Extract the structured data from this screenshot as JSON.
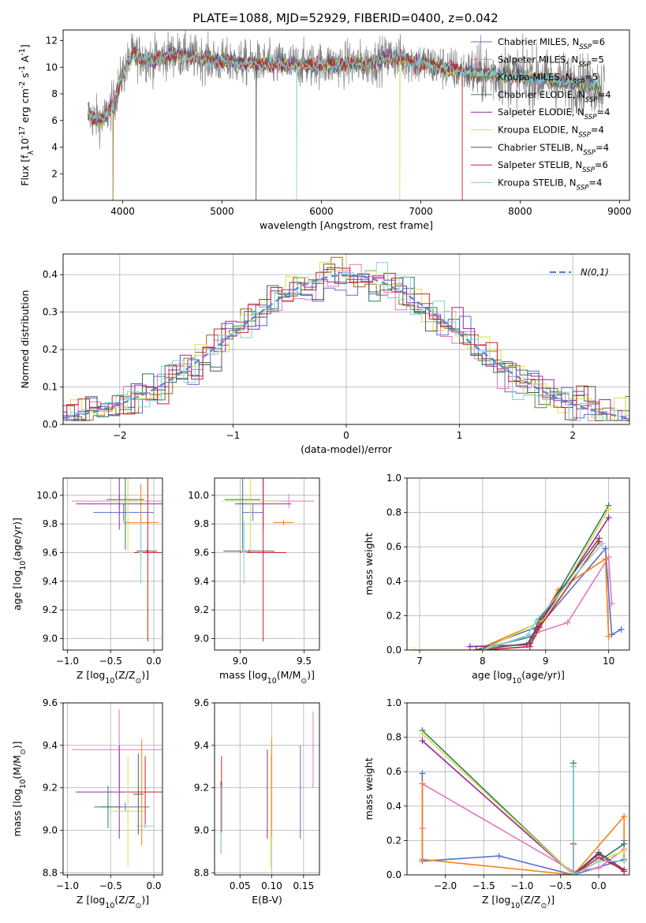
{
  "page": {
    "title": "PLATE=1088, MJD=52929, FIBERID=0400, z=0.042"
  },
  "chart_data": [
    {
      "id": "spectrum",
      "type": "line",
      "xlabel": "wavelength [Angstrom, rest frame]",
      "ylabel": "Flux [f$_\\lambda$10$^{-17}$ erg cm$^{-2}$ s$^{-1}$ A$^{-1}$]",
      "xlim": [
        3400,
        9100
      ],
      "ylim": [
        0,
        12.8
      ],
      "xticks": [
        4000,
        5000,
        6000,
        7000,
        8000,
        9000
      ],
      "yticks": [
        0,
        2,
        4,
        6,
        8,
        10,
        12
      ],
      "grid": false,
      "legend_position": "top-right",
      "x_range": [
        3650,
        8800
      ],
      "series": [
        {
          "name": "Chabrier MILES, N$_{SSP}$=6",
          "label": "Chabrier MILES, N",
          "sub": "SSP",
          "suffix": "=6",
          "color": "#5a6fcf",
          "drop_at": null
        },
        {
          "name": "Salpeter MILES, N$_{SSP}$=5",
          "label": "Salpeter MILES, N",
          "sub": "SSP",
          "suffix": "=5",
          "color": "#e377c2",
          "drop_at": null
        },
        {
          "name": "Kroupa MILES, N$_{SSP}$=5",
          "label": "Kroupa MILES, N",
          "sub": "SSP",
          "suffix": "=5",
          "color": "#8c6d1f",
          "drop_at": 3900
        },
        {
          "name": "Chabrier ELODIE, N$_{SSP}$=4",
          "label": "Chabrier ELODIE, N",
          "sub": "SSP",
          "suffix": "=4",
          "color": "#2f7a5f",
          "drop_at": null
        },
        {
          "name": "Salpeter ELODIE, N$_{SSP}$=4",
          "label": "Salpeter ELODIE, N",
          "sub": "SSP",
          "suffix": "=4",
          "color": "#9526a5",
          "drop_at": null
        },
        {
          "name": "Kroupa ELODIE, N$_{SSP}$=4",
          "label": "Kroupa ELODIE, N",
          "sub": "SSP",
          "suffix": "=4",
          "color": "#d6e14a",
          "drop_at": 6790
        },
        {
          "name": "Chabrier STELIB, N$_{SSP}$=4",
          "label": "Chabrier STELIB, N",
          "sub": "SSP",
          "suffix": "=4",
          "color": "#555555",
          "drop_at": 5340
        },
        {
          "name": "Salpeter STELIB, N$_{SSP}$=6",
          "label": "Salpeter STELIB, N",
          "sub": "SSP",
          "suffix": "=6",
          "color": "#cc2222",
          "drop_at": 7420
        },
        {
          "name": "Kroupa STELIB, N$_{SSP}$=4",
          "label": "Kroupa STELIB, N",
          "sub": "SSP",
          "suffix": "=4",
          "color": "#7fd3d6",
          "drop_at": 5750
        }
      ],
      "continuum_knots": {
        "wavelength": [
          3650,
          3700,
          3800,
          3900,
          4000,
          4100,
          4300,
          4500,
          5000,
          5500,
          6000,
          6500,
          6700,
          7000,
          7500,
          8000,
          8500,
          8800
        ],
        "flux": [
          6.5,
          6.2,
          6.0,
          7.2,
          9.5,
          11.0,
          10.5,
          11.0,
          10.4,
          10.2,
          10.2,
          10.3,
          10.8,
          10.3,
          9.6,
          9.3,
          8.9,
          8.6
        ]
      },
      "data_series": {
        "name": "observed",
        "color": "#808080",
        "x_range": [
          3650,
          8850
        ]
      }
    },
    {
      "id": "residuals",
      "type": "histogram",
      "xlabel": "(data-model)/error",
      "ylabel": "Normed distribution",
      "xlim": [
        -2.5,
        2.5
      ],
      "ylim": [
        0,
        0.455
      ],
      "xticks": [
        -2,
        -1,
        0,
        1,
        2
      ],
      "yticks": [
        0.0,
        0.1,
        0.2,
        0.3,
        0.4
      ],
      "grid": true,
      "legend_position": "top-right",
      "legend": "$\\mathcal{N}(0,1)$",
      "reference_curve": {
        "type": "gaussian",
        "mean": 0,
        "sigma": 1,
        "color": "#5b84d8",
        "style": "dashed"
      },
      "bin_width": 0.1,
      "colors": [
        "#5a6fcf",
        "#e377c2",
        "#8c6d1f",
        "#2f7a5f",
        "#9526a5",
        "#d6e14a",
        "#555555",
        "#cc2222",
        "#7fd3d6"
      ]
    },
    {
      "id": "z_vs_age",
      "type": "errorbar",
      "xlabel": "Z [log$_{10}$(Z/Z$_\\odot$)]",
      "ylabel": "age  [log$_{10}$(age/yr)]",
      "xlim": [
        -1.05,
        0.1
      ],
      "ylim": [
        8.92,
        10.12
      ],
      "xticks": [
        -1.0,
        -0.5,
        0.0
      ],
      "yticks": [
        9.0,
        9.2,
        9.4,
        9.6,
        9.8,
        10.0
      ],
      "grid": true,
      "points": [
        {
          "color": "#5a6fcf",
          "x": -0.35,
          "xerr": 0.35,
          "y": 9.88,
          "yerr": 0.06
        },
        {
          "color": "#e377c2",
          "x": -0.4,
          "xerr": 0.55,
          "y": 9.96,
          "yerr": 0.05
        },
        {
          "color": "#ff7f0e",
          "x": -0.15,
          "xerr": 0.2,
          "y": 9.81,
          "yerr": 0.27
        },
        {
          "color": "#2f7a5f",
          "x": -0.33,
          "xerr": 0.22,
          "y": 9.97,
          "yerr": 0.35
        },
        {
          "color": "#9526a5",
          "x": -0.4,
          "xerr": 0.5,
          "y": 9.94,
          "yerr": 0.18
        },
        {
          "color": "#d6e14a",
          "x": -0.3,
          "xerr": 0.2,
          "y": 9.96,
          "yerr": 0.35
        },
        {
          "color": "#555555",
          "x": -0.08,
          "xerr": 0.12,
          "y": 9.61,
          "yerr": 0.01
        },
        {
          "color": "#cc2222",
          "x": -0.07,
          "xerr": 0.16,
          "y": 9.6,
          "yerr": 0.62
        },
        {
          "color": "#7fd3d6",
          "x": -0.15,
          "xerr": 0.02,
          "y": 9.6,
          "yerr": 0.22
        }
      ]
    },
    {
      "id": "mass_vs_age",
      "type": "errorbar",
      "xlabel": "mass [log$_{10}$(M/M$_\\odot$)]",
      "ylabel": "",
      "xlim": [
        8.8,
        9.62
      ],
      "ylim": [
        8.92,
        10.12
      ],
      "xticks": [
        9.0,
        9.5
      ],
      "yticks": [
        9.0,
        9.2,
        9.4,
        9.6,
        9.8,
        10.0
      ],
      "grid": true,
      "points": [
        {
          "color": "#5a6fcf",
          "x": 9.1,
          "xerr": 0.08,
          "y": 9.88,
          "yerr": 0.06
        },
        {
          "color": "#e377c2",
          "x": 9.38,
          "xerr": 0.2,
          "y": 9.96,
          "yerr": 0.05
        },
        {
          "color": "#ff7f0e",
          "x": 9.34,
          "xerr": 0.08,
          "y": 9.81,
          "yerr": 0.02
        },
        {
          "color": "#2f7a5f",
          "x": 9.02,
          "xerr": 0.14,
          "y": 9.97,
          "yerr": 0.35
        },
        {
          "color": "#9526a5",
          "x": 9.18,
          "xerr": 0.22,
          "y": 9.94,
          "yerr": 0.18
        },
        {
          "color": "#d6e14a",
          "x": 9.08,
          "xerr": 0.22,
          "y": 9.96,
          "yerr": 0.35
        },
        {
          "color": "#555555",
          "x": 9.07,
          "xerr": 0.2,
          "y": 9.61,
          "yerr": 0.01
        },
        {
          "color": "#cc2222",
          "x": 9.18,
          "xerr": 0.18,
          "y": 9.6,
          "yerr": 0.62
        },
        {
          "color": "#7fd3d6",
          "x": 9.03,
          "xerr": 0.02,
          "y": 9.6,
          "yerr": 0.22
        }
      ]
    },
    {
      "id": "age_vs_massweight",
      "type": "line",
      "xlabel": "age  [log$_{10}$(age/yr)]",
      "ylabel": "mass weight",
      "xlim": [
        6.8,
        10.33
      ],
      "ylim": [
        0,
        1.0
      ],
      "xticks": [
        7,
        8,
        9,
        10
      ],
      "yticks": [
        0.0,
        0.2,
        0.4,
        0.6,
        0.8,
        1.0
      ],
      "grid": true,
      "series": [
        {
          "color": "#5a6fcf",
          "x": [
            7.9,
            8.9,
            9.95,
            10.05,
            10.2
          ],
          "y": [
            0.0,
            0.14,
            0.59,
            0.09,
            0.12
          ]
        },
        {
          "color": "#e377c2",
          "x": [
            8.0,
            8.85,
            9.35,
            10.0,
            10.05
          ],
          "y": [
            0.0,
            0.1,
            0.16,
            0.54,
            0.27
          ]
        },
        {
          "color": "#ff7f0e",
          "x": [
            7.9,
            8.9,
            9.2,
            9.95,
            10.0
          ],
          "y": [
            0.0,
            0.16,
            0.35,
            0.53,
            0.08
          ]
        },
        {
          "color": "#2f7a5f",
          "x": [
            7.9,
            8.8,
            8.95,
            10.0
          ],
          "y": [
            0.0,
            0.08,
            0.18,
            0.84
          ]
        },
        {
          "color": "#9526a5",
          "x": [
            7.8,
            8.7,
            8.85,
            10.0
          ],
          "y": [
            0.02,
            0.03,
            0.12,
            0.77
          ]
        },
        {
          "color": "#d6e14a",
          "x": [
            6.9,
            8.0,
            9.0,
            10.0
          ],
          "y": [
            0.0,
            0.0,
            0.18,
            0.82
          ]
        },
        {
          "color": "#555555",
          "x": [
            7.9,
            8.75,
            8.9,
            9.85
          ],
          "y": [
            0.0,
            0.04,
            0.18,
            0.65
          ]
        },
        {
          "color": "#cc2222",
          "x": [
            8.0,
            8.75,
            8.9,
            9.85
          ],
          "y": [
            0.0,
            0.02,
            0.13,
            0.63
          ]
        },
        {
          "color": "#7fd3d6",
          "x": [
            8.0,
            8.7,
            8.85,
            9.9
          ],
          "y": [
            0.0,
            0.08,
            0.17,
            0.62
          ]
        }
      ]
    },
    {
      "id": "z_vs_mass",
      "type": "errorbar",
      "xlabel": "Z [log$_{10}$(Z/Z$_\\odot$)]",
      "ylabel": "mass [log$_{10}$(M/M$_\\odot$)]",
      "xlim": [
        -1.05,
        0.1
      ],
      "ylim": [
        8.79,
        9.6
      ],
      "xticks": [
        -1.0,
        -0.5,
        0.0
      ],
      "yticks": [
        8.8,
        9.0,
        9.2,
        9.4,
        9.6
      ],
      "grid": true,
      "points": [
        {
          "color": "#5a6fcf",
          "x": -0.33,
          "xerr": 0.28,
          "y": 9.11,
          "yerr": 0.02
        },
        {
          "color": "#e377c2",
          "x": -0.4,
          "xerr": 0.55,
          "y": 9.38,
          "yerr": 0.19
        },
        {
          "color": "#ff7f0e",
          "x": -0.14,
          "xerr": 0.12,
          "y": 9.18,
          "yerr": 0.25
        },
        {
          "color": "#2f7a5f",
          "x": -0.53,
          "xerr": 0.16,
          "y": 9.11,
          "yerr": 0.1
        },
        {
          "color": "#9526a5",
          "x": -0.4,
          "xerr": 0.5,
          "y": 9.18,
          "yerr": 0.22
        },
        {
          "color": "#d6e14a",
          "x": -0.3,
          "xerr": 0.2,
          "y": 9.09,
          "yerr": 0.26
        },
        {
          "color": "#555555",
          "x": -0.18,
          "xerr": 0.06,
          "y": 9.17,
          "yerr": 0.19
        },
        {
          "color": "#cc2222",
          "x": -0.1,
          "xerr": 0.18,
          "y": 9.18,
          "yerr": 0.17
        },
        {
          "color": "#7fd3d6",
          "x": -0.1,
          "xerr": 0.1,
          "y": 9.02,
          "yerr": 0.01
        }
      ]
    },
    {
      "id": "ebv_vs_mass",
      "type": "errorbar",
      "xlabel": "E(B-V)",
      "ylabel": "",
      "xlim": [
        0.01,
        0.175
      ],
      "ylim": [
        8.79,
        9.6
      ],
      "xticks": [
        0.05,
        0.1,
        0.15
      ],
      "yticks": [
        8.8,
        9.0,
        9.2,
        9.4,
        9.6
      ],
      "grid": true,
      "points": [
        {
          "color": "#5a6fcf",
          "x": 0.145,
          "xerr": 0,
          "y": 9.18,
          "yerr": 0.22
        },
        {
          "color": "#e377c2",
          "x": 0.165,
          "xerr": 0,
          "y": 9.38,
          "yerr": 0.18
        },
        {
          "color": "#ff7f0e",
          "x": 0.1,
          "xerr": 0,
          "y": 9.2,
          "yerr": 0.23
        },
        {
          "color": "#2f7a5f",
          "x": 0.02,
          "xerr": 0,
          "y": 9.05,
          "yerr": 0.16
        },
        {
          "color": "#9526a5",
          "x": 0.093,
          "xerr": 0,
          "y": 9.17,
          "yerr": 0.21
        },
        {
          "color": "#d6e14a",
          "x": 0.098,
          "xerr": 0,
          "y": 9.09,
          "yerr": 0.27
        },
        {
          "color": "#555555",
          "x": 0.02,
          "xerr": 0,
          "y": 9.06,
          "yerr": 0.17
        },
        {
          "color": "#cc2222",
          "x": 0.021,
          "xerr": 0,
          "y": 9.17,
          "yerr": 0.18
        },
        {
          "color": "#7fd3d6",
          "x": 0.02,
          "xerr": 0,
          "y": 9.05,
          "yerr": 0.16
        }
      ]
    },
    {
      "id": "z_vs_massweight",
      "type": "line",
      "xlabel": "Z [log$_{10}$(Z/Z$_\\odot$)]",
      "ylabel": "mass weight",
      "xlim": [
        -2.5,
        0.4
      ],
      "ylim": [
        0,
        1.0
      ],
      "xticks": [
        -2.0,
        -1.5,
        -1.0,
        -0.5,
        0.0
      ],
      "yticks": [
        0.0,
        0.2,
        0.4,
        0.6,
        0.8,
        1.0
      ],
      "grid": true,
      "series": [
        {
          "color": "#5a6fcf",
          "x": [
            -2.3,
            -2.3,
            -1.3,
            -0.33,
            0.33,
            0.33
          ],
          "y": [
            0.59,
            0.08,
            0.11,
            0.0,
            0.09,
            0.2
          ]
        },
        {
          "color": "#e377c2",
          "x": [
            -2.3,
            -2.3,
            -0.33,
            0.0,
            0.33
          ],
          "y": [
            0.27,
            0.53,
            0.02,
            0.04,
            0.15
          ]
        },
        {
          "color": "#ff7f0e",
          "x": [
            -2.3,
            -2.3,
            -0.33,
            0.33,
            0.33
          ],
          "y": [
            0.53,
            0.09,
            0.0,
            0.34,
            0.08
          ]
        },
        {
          "color": "#2f7a5f",
          "x": [
            -2.3,
            -0.33,
            0.0,
            0.33
          ],
          "y": [
            0.84,
            0.0,
            0.08,
            0.18
          ]
        },
        {
          "color": "#9526a5",
          "x": [
            -2.3,
            -0.33,
            0.0,
            0.33
          ],
          "y": [
            0.78,
            0.0,
            0.12,
            0.02
          ]
        },
        {
          "color": "#d6e14a",
          "x": [
            -2.3,
            -0.33,
            0.0,
            0.33
          ],
          "y": [
            0.82,
            0.0,
            0.08,
            0.14
          ]
        },
        {
          "color": "#555555",
          "x": [
            -0.33,
            -0.33,
            0.0,
            0.33
          ],
          "y": [
            0.65,
            0.0,
            0.13,
            0.03
          ]
        },
        {
          "color": "#cc2222",
          "x": [
            -0.33,
            -0.33,
            0.0,
            0.33
          ],
          "y": [
            0.18,
            0.0,
            0.1,
            0.03
          ]
        },
        {
          "color": "#7fd3d6",
          "x": [
            -0.33,
            -0.33,
            0.0,
            0.33
          ],
          "y": [
            0.63,
            0.0,
            0.08,
            0.08
          ]
        }
      ]
    }
  ]
}
